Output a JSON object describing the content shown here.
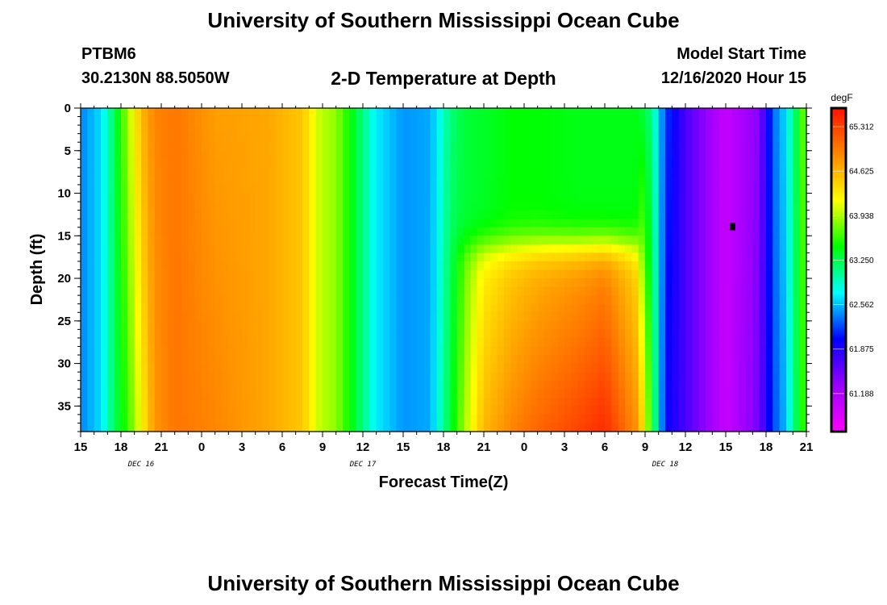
{
  "header": {
    "title": "University of Southern Mississippi Ocean Cube",
    "station_id": "PTBM6",
    "station_coords": "30.2130N 88.5050W",
    "plot_title": "2-D Temperature at Depth",
    "model_label": "Model Start Time",
    "model_time": "12/16/2020 Hour 15"
  },
  "footer": {
    "title": "University of Southern Mississippi Ocean Cube"
  },
  "chart_data": {
    "type": "heatmap",
    "title": "2-D Temperature at Depth",
    "xlabel": "Forecast Time(Z)",
    "ylabel": "Depth (ft)",
    "x_hours_range": [
      0,
      54
    ],
    "x_ticks": [
      {
        "h": 0,
        "label": "15"
      },
      {
        "h": 3,
        "label": "18"
      },
      {
        "h": 6,
        "label": "21"
      },
      {
        "h": 9,
        "label": "0"
      },
      {
        "h": 12,
        "label": "3"
      },
      {
        "h": 15,
        "label": "6"
      },
      {
        "h": 18,
        "label": "9"
      },
      {
        "h": 21,
        "label": "12"
      },
      {
        "h": 24,
        "label": "15"
      },
      {
        "h": 27,
        "label": "18"
      },
      {
        "h": 30,
        "label": "21"
      },
      {
        "h": 33,
        "label": "0"
      },
      {
        "h": 36,
        "label": "3"
      },
      {
        "h": 39,
        "label": "6"
      },
      {
        "h": 42,
        "label": "9"
      },
      {
        "h": 45,
        "label": "12"
      },
      {
        "h": 48,
        "label": "15"
      },
      {
        "h": 51,
        "label": "18"
      },
      {
        "h": 54,
        "label": "21"
      }
    ],
    "date_labels": [
      {
        "h": 4.5,
        "label": "DEC 16"
      },
      {
        "h": 21,
        "label": "DEC 17"
      },
      {
        "h": 43.5,
        "label": "DEC 18"
      }
    ],
    "y_range": [
      0,
      38
    ],
    "y_ticks": [
      0,
      5,
      10,
      15,
      20,
      25,
      30,
      35
    ],
    "colorbar": {
      "unit": "degF",
      "min": 60.6,
      "max": 65.6,
      "labels": [
        "65.312",
        "64.625",
        "63.938",
        "63.250",
        "62.562",
        "61.875",
        "61.188"
      ],
      "colors": [
        "#ff00ff",
        "#9900ff",
        "#0000ff",
        "#00ffff",
        "#00ff00",
        "#ffff00",
        "#ff8800",
        "#ff1100"
      ]
    },
    "time_profile": [
      {
        "h": 0.0,
        "surface": 62.4,
        "bottom": 62.4
      },
      {
        "h": 1.5,
        "surface": 62.65,
        "bottom": 62.65
      },
      {
        "h": 2.5,
        "surface": 63.2,
        "bottom": 63.2
      },
      {
        "h": 3.5,
        "surface": 63.9,
        "bottom": 63.6
      },
      {
        "h": 4.5,
        "surface": 64.6,
        "bottom": 64.2
      },
      {
        "h": 5.5,
        "surface": 64.9,
        "bottom": 64.8
      },
      {
        "h": 7.0,
        "surface": 65.0,
        "bottom": 65.0
      },
      {
        "h": 10.0,
        "surface": 64.75,
        "bottom": 64.9
      },
      {
        "h": 14.0,
        "surface": 64.7,
        "bottom": 64.7
      },
      {
        "h": 16.5,
        "surface": 64.5,
        "bottom": 64.5
      },
      {
        "h": 17.8,
        "surface": 64.0,
        "bottom": 64.0
      },
      {
        "h": 19.0,
        "surface": 63.85,
        "bottom": 63.85
      },
      {
        "h": 20.5,
        "surface": 63.3,
        "bottom": 63.3
      },
      {
        "h": 22.0,
        "surface": 62.7,
        "bottom": 62.7
      },
      {
        "h": 24.0,
        "surface": 62.45,
        "bottom": 62.45
      },
      {
        "h": 26.0,
        "surface": 62.5,
        "bottom": 62.5
      },
      {
        "h": 27.5,
        "surface": 63.1,
        "bottom": 63.3
      },
      {
        "h": 28.5,
        "surface": 63.3,
        "bottom": 63.9
      },
      {
        "h": 30.0,
        "surface": 63.35,
        "bottom": 64.6
      },
      {
        "h": 32.0,
        "surface": 63.45,
        "bottom": 64.9
      },
      {
        "h": 34.0,
        "surface": 63.45,
        "bottom": 65.1
      },
      {
        "h": 37.0,
        "surface": 63.4,
        "bottom": 65.3
      },
      {
        "h": 39.0,
        "surface": 63.4,
        "bottom": 65.45
      },
      {
        "h": 41.5,
        "surface": 63.4,
        "bottom": 64.8
      },
      {
        "h": 42.5,
        "surface": 63.1,
        "bottom": 63.5
      },
      {
        "h": 43.5,
        "surface": 62.2,
        "bottom": 62.0
      },
      {
        "h": 45.0,
        "surface": 61.7,
        "bottom": 61.7
      },
      {
        "h": 48.0,
        "surface": 61.0,
        "bottom": 61.0
      },
      {
        "h": 50.5,
        "surface": 61.4,
        "bottom": 61.5
      },
      {
        "h": 51.5,
        "surface": 62.3,
        "bottom": 62.2
      },
      {
        "h": 52.3,
        "surface": 62.6,
        "bottom": 62.5
      },
      {
        "h": 53.2,
        "surface": 63.2,
        "bottom": 63.2
      },
      {
        "h": 54.0,
        "surface": 63.9,
        "bottom": 63.7
      }
    ],
    "thermocline": {
      "start_h": 28.0,
      "end_h": 42.0,
      "depth_ft": 16.0
    }
  }
}
